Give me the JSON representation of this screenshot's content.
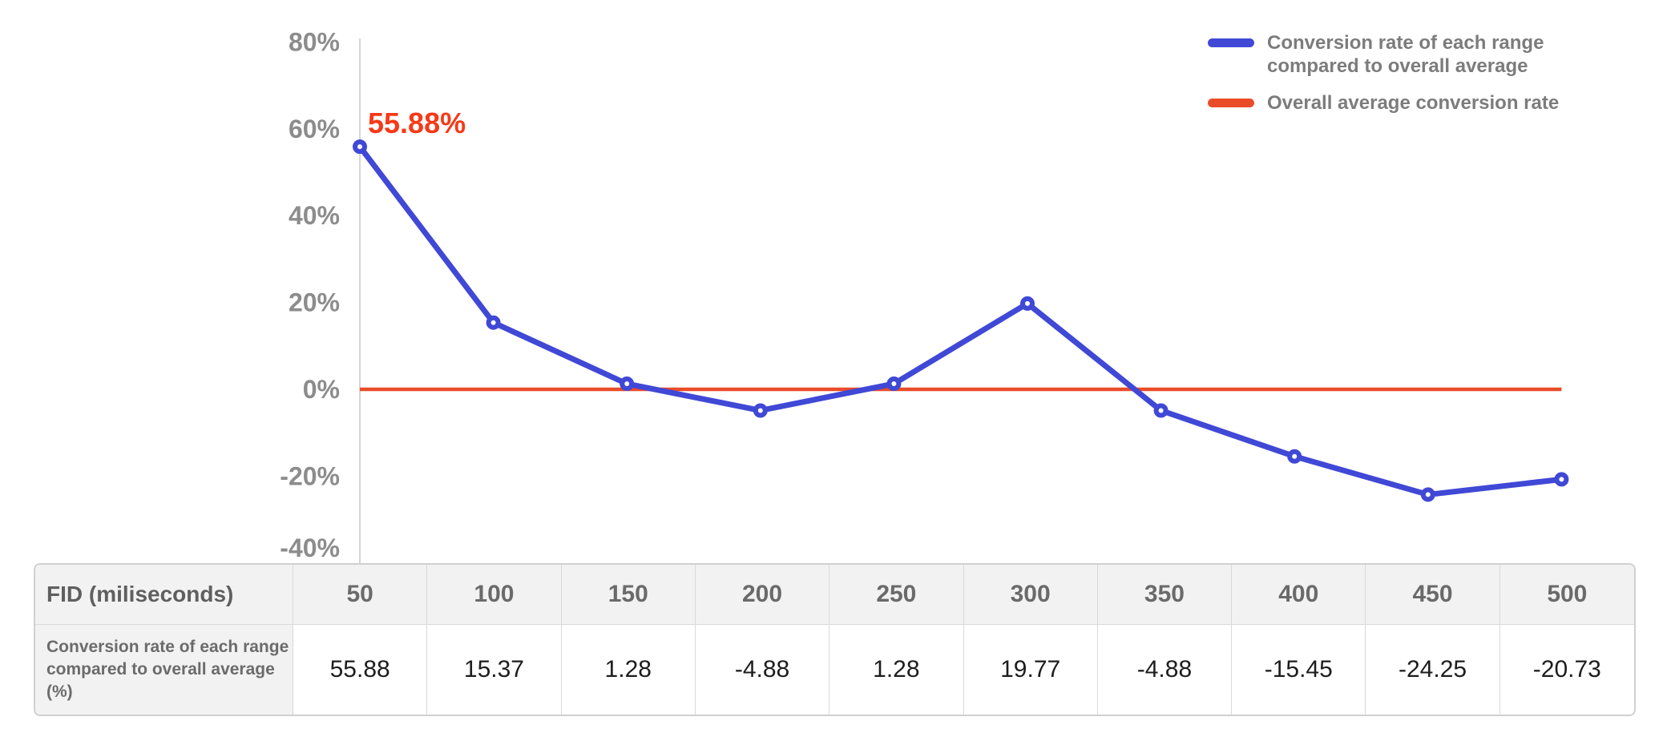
{
  "chart_data": {
    "type": "line",
    "title": "",
    "x_label": "FID (miliseconds)",
    "x": [
      50,
      100,
      150,
      200,
      250,
      300,
      350,
      400,
      450,
      500
    ],
    "series": [
      {
        "name": "Conversion rate of each range compared to overall average",
        "values": [
          55.88,
          15.37,
          1.28,
          -4.88,
          1.28,
          19.77,
          -4.88,
          -15.45,
          -24.25,
          -20.73
        ],
        "color": "#4048D6",
        "marker": "open-circle"
      },
      {
        "name": "Overall average conversion rate",
        "type": "constant",
        "value": 0,
        "color": "#EA4C28"
      }
    ],
    "y_axis": {
      "tick_labels": [
        "80%",
        "60%",
        "40%",
        "20%",
        "0%",
        "-20%",
        "-40%"
      ],
      "tick_values": [
        80,
        60,
        40,
        20,
        0,
        -20,
        -40
      ],
      "min": -40,
      "max": 80,
      "grid": false
    },
    "annotation": {
      "text": "55.88%",
      "target_x": 50,
      "color": "#F53A18"
    },
    "legend_position": "top-right",
    "legend": [
      {
        "label": "Conversion rate of each range compared to overall average",
        "color": "#4048D6"
      },
      {
        "label": "Overall average conversion rate",
        "color": "#EA4C28"
      }
    ]
  },
  "table": {
    "header_label": "FID (miliseconds)",
    "columns": [
      "50",
      "100",
      "150",
      "200",
      "250",
      "300",
      "350",
      "400",
      "450",
      "500"
    ],
    "row_label": "Conversion rate of each range compared to overall average (%)",
    "values": [
      "55.88",
      "15.37",
      "1.28",
      "-4.88",
      "1.28",
      "19.77",
      "-4.88",
      "-15.45",
      "-24.25",
      "-20.73"
    ]
  },
  "colors": {
    "series_blue": "#4048D6",
    "average_red": "#EA4C28",
    "annotation_red": "#F53A18",
    "axis_line": "#D6D6D6",
    "tick_label": "#8C8C8C",
    "legend_text": "#7C7C7C",
    "table_header_text": "#6A6A6A",
    "table_value_text": "#1D1D1D",
    "table_header_bg": "#F2F2F2",
    "table_border": "#D9D9D9"
  }
}
